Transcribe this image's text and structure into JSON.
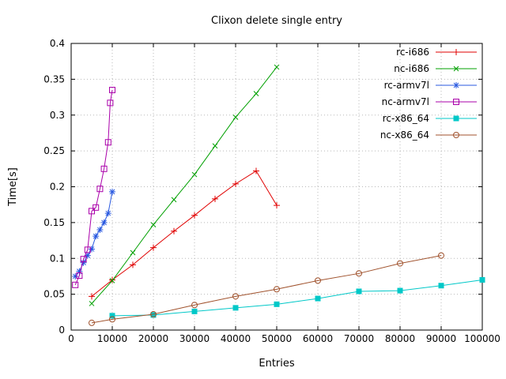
{
  "background": "#ffffff",
  "chart_data": {
    "type": "line",
    "title": "Clixon delete single entry",
    "xlabel": "Entries",
    "ylabel": "Time[s]",
    "xlim": [
      0,
      100000
    ],
    "ylim": [
      0,
      0.4
    ],
    "xticks": [
      0,
      10000,
      20000,
      30000,
      40000,
      50000,
      60000,
      70000,
      80000,
      90000,
      100000
    ],
    "xtick_labels": [
      "0",
      "10000",
      "20000",
      "30000",
      "40000",
      "50000",
      "60000",
      "70000",
      "80000",
      "90000",
      "100000"
    ],
    "yticks": [
      0,
      0.05,
      0.1,
      0.15,
      0.2,
      0.25,
      0.3,
      0.35,
      0.4
    ],
    "ytick_labels": [
      "0",
      "0.05",
      "0.1",
      "0.15",
      "0.2",
      "0.25",
      "0.3",
      "0.35",
      "0.4"
    ],
    "grid": true,
    "grid_color": "#b8b8b8",
    "legend_position": "top-right",
    "series": [
      {
        "name": "rc-i686",
        "color": "#e00000",
        "marker": "plus",
        "points": [
          [
            5000,
            0.047
          ],
          [
            10000,
            0.07
          ],
          [
            15000,
            0.091
          ],
          [
            20000,
            0.115
          ],
          [
            25000,
            0.138
          ],
          [
            30000,
            0.16
          ],
          [
            35000,
            0.183
          ],
          [
            40000,
            0.204
          ],
          [
            45000,
            0.222
          ],
          [
            50000,
            0.174
          ]
        ]
      },
      {
        "name": "nc-i686",
        "color": "#00a000",
        "marker": "cross",
        "points": [
          [
            5000,
            0.037
          ],
          [
            10000,
            0.069
          ],
          [
            15000,
            0.108
          ],
          [
            20000,
            0.147
          ],
          [
            25000,
            0.182
          ],
          [
            30000,
            0.217
          ],
          [
            35000,
            0.257
          ],
          [
            40000,
            0.297
          ],
          [
            45000,
            0.33
          ],
          [
            50000,
            0.367
          ]
        ]
      },
      {
        "name": "rc-armv7l",
        "color": "#2858e0",
        "marker": "asterisk",
        "points": [
          [
            1000,
            0.075
          ],
          [
            2000,
            0.082
          ],
          [
            3000,
            0.094
          ],
          [
            4000,
            0.104
          ],
          [
            5000,
            0.113
          ],
          [
            6000,
            0.131
          ],
          [
            7000,
            0.14
          ],
          [
            8000,
            0.15
          ],
          [
            9000,
            0.163
          ],
          [
            10000,
            0.193
          ]
        ]
      },
      {
        "name": "nc-armv7l",
        "color": "#aa00aa",
        "marker": "square-open",
        "points": [
          [
            1000,
            0.063
          ],
          [
            2000,
            0.076
          ],
          [
            3000,
            0.099
          ],
          [
            4000,
            0.112
          ],
          [
            5000,
            0.166
          ],
          [
            6000,
            0.171
          ],
          [
            7000,
            0.197
          ],
          [
            8000,
            0.225
          ],
          [
            9000,
            0.262
          ],
          [
            9500,
            0.317
          ],
          [
            10000,
            0.335
          ]
        ]
      },
      {
        "name": "rc-x86_64",
        "color": "#00c8c8",
        "marker": "square-filled",
        "points": [
          [
            10000,
            0.02
          ],
          [
            20000,
            0.021
          ],
          [
            30000,
            0.026
          ],
          [
            40000,
            0.031
          ],
          [
            50000,
            0.036
          ],
          [
            60000,
            0.044
          ],
          [
            70000,
            0.054
          ],
          [
            80000,
            0.055
          ],
          [
            90000,
            0.062
          ],
          [
            100000,
            0.07
          ]
        ]
      },
      {
        "name": "nc-x86_64",
        "color": "#a0522d",
        "marker": "circle-open",
        "points": [
          [
            5000,
            0.01
          ],
          [
            10000,
            0.015
          ],
          [
            20000,
            0.022
          ],
          [
            30000,
            0.035
          ],
          [
            40000,
            0.047
          ],
          [
            50000,
            0.057
          ],
          [
            60000,
            0.069
          ],
          [
            70000,
            0.079
          ],
          [
            80000,
            0.093
          ],
          [
            90000,
            0.104
          ]
        ]
      }
    ]
  }
}
